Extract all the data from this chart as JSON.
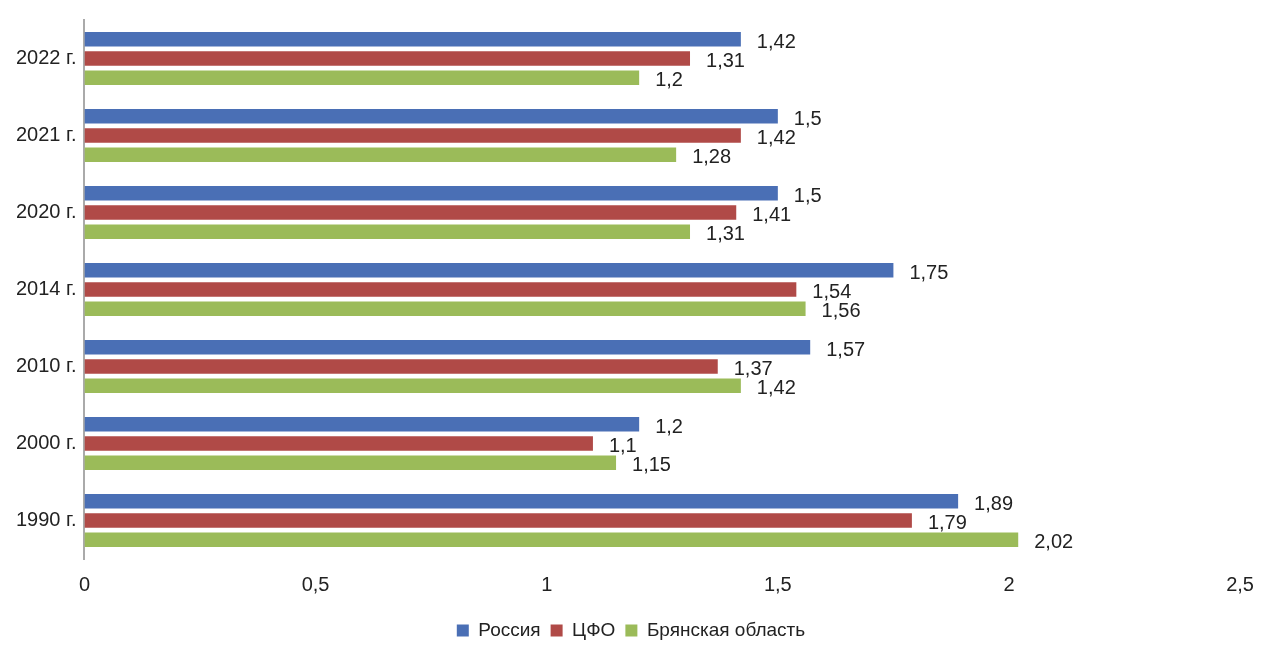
{
  "chart_data": {
    "type": "bar",
    "orientation": "horizontal",
    "categories": [
      "2022 г.",
      "2021 г.",
      "2020 г.",
      "2014 г.",
      "2010 г.",
      "2000 г.",
      "1990 г."
    ],
    "series": [
      {
        "name": "Россия",
        "color": "#4a6fb5",
        "values": [
          1.42,
          1.5,
          1.5,
          1.75,
          1.57,
          1.2,
          1.89
        ],
        "value_labels": [
          "1,42",
          "1,5",
          "1,5",
          "1,75",
          "1,57",
          "1,2",
          "1,89"
        ]
      },
      {
        "name": "ЦФО",
        "color": "#b04a47",
        "values": [
          1.31,
          1.42,
          1.41,
          1.54,
          1.37,
          1.1,
          1.79
        ],
        "value_labels": [
          "1,31",
          "1,42",
          "1,41",
          "1,54",
          "1,37",
          "1,1",
          "1,79"
        ]
      },
      {
        "name": "Брянская область",
        "color": "#9bbb59",
        "values": [
          1.2,
          1.28,
          1.31,
          1.56,
          1.42,
          1.15,
          2.02
        ],
        "value_labels": [
          "1,2",
          "1,28",
          "1,31",
          "1,56",
          "1,42",
          "1,15",
          "2,02"
        ]
      }
    ],
    "xlim": [
      0,
      2.5
    ],
    "xticks": [
      0,
      {
        "value": 0.5,
        "label": "0,5"
      },
      1,
      {
        "value": 1.5,
        "label": "1,5"
      },
      2,
      {
        "value": 2.5,
        "label": "2,5"
      }
    ],
    "grid": false,
    "legend": "bottom"
  }
}
